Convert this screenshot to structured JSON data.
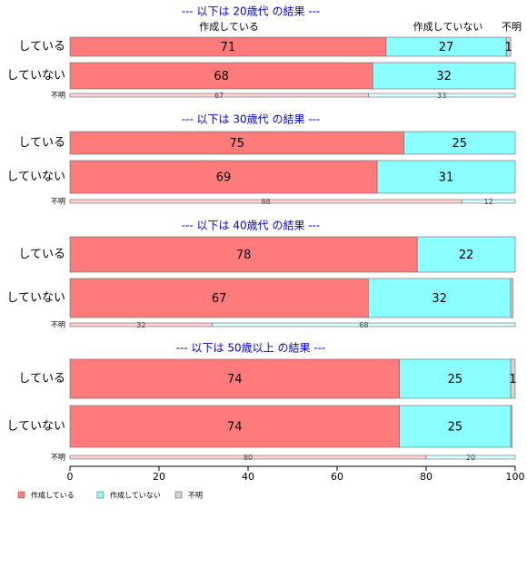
{
  "colors": {
    "made": "#ff7a7a",
    "not_made": "#8bffff",
    "unknown": "#d3d3d3",
    "title": "#0000ee"
  },
  "top_labels": [
    "作成している",
    "作成していない",
    "不明"
  ],
  "legend": [
    {
      "label": "作成している",
      "color_key": "made"
    },
    {
      "label": "作成していない",
      "color_key": "not_made"
    },
    {
      "label": "不明",
      "color_key": "unknown"
    }
  ],
  "chart_data": {
    "type": "bar",
    "orientation": "horizontal",
    "stacked": true,
    "xlim": [
      0,
      100
    ],
    "x_ticks": [
      "0",
      "20",
      "40",
      "60",
      "80",
      "100"
    ],
    "series_names": [
      "作成している",
      "作成していない",
      "不明"
    ],
    "groups": [
      {
        "title": "--- 以下は 20歳代 の結果 ---",
        "rows": [
          {
            "label": "している",
            "values": [
              71,
              27,
              1
            ]
          },
          {
            "label": "していない",
            "values": [
              68,
              32,
              0
            ]
          },
          {
            "label": "不明",
            "values": [
              67,
              33,
              0
            ]
          }
        ]
      },
      {
        "title": "--- 以下は 30歳代 の結果 ---",
        "rows": [
          {
            "label": "している",
            "values": [
              75,
              25,
              0
            ]
          },
          {
            "label": "していない",
            "values": [
              69,
              31,
              0
            ]
          },
          {
            "label": "不明",
            "values": [
              88,
              12,
              0
            ]
          }
        ]
      },
      {
        "title": "--- 以下は 40歳代 の結果 ---",
        "rows": [
          {
            "label": "している",
            "values": [
              78,
              22,
              0
            ]
          },
          {
            "label": "していない",
            "values": [
              67,
              32,
              0.5
            ]
          },
          {
            "label": "不明",
            "values": [
              32,
              68,
              0
            ]
          }
        ]
      },
      {
        "title": "--- 以下は 50歳以上 の結果 ---",
        "rows": [
          {
            "label": "している",
            "values": [
              74,
              25,
              1
            ]
          },
          {
            "label": "していない",
            "values": [
              74,
              25,
              0.3
            ]
          },
          {
            "label": "不明",
            "values": [
              80,
              20,
              0
            ]
          }
        ]
      }
    ]
  }
}
